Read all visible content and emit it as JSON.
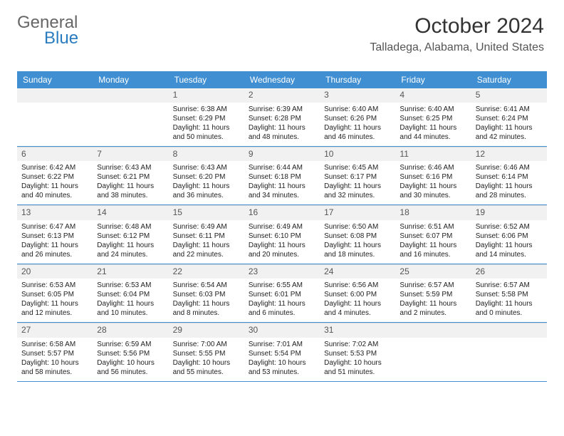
{
  "brand": {
    "part1": "General",
    "part2": "Blue"
  },
  "title": "October 2024",
  "location": "Talladega, Alabama, United States",
  "colors": {
    "header_bg": "#3f8fd2",
    "header_text": "#ffffff",
    "rule": "#3f8fd2",
    "daynum_bg": "#f1f1f1",
    "text": "#222222",
    "title_color": "#333333",
    "brand_gray": "#666666",
    "brand_blue": "#2b7bbf"
  },
  "day_names": [
    "Sunday",
    "Monday",
    "Tuesday",
    "Wednesday",
    "Thursday",
    "Friday",
    "Saturday"
  ],
  "weeks": [
    [
      {
        "n": "",
        "lines": []
      },
      {
        "n": "",
        "lines": []
      },
      {
        "n": "1",
        "lines": [
          "Sunrise: 6:38 AM",
          "Sunset: 6:29 PM",
          "Daylight: 11 hours",
          "and 50 minutes."
        ]
      },
      {
        "n": "2",
        "lines": [
          "Sunrise: 6:39 AM",
          "Sunset: 6:28 PM",
          "Daylight: 11 hours",
          "and 48 minutes."
        ]
      },
      {
        "n": "3",
        "lines": [
          "Sunrise: 6:40 AM",
          "Sunset: 6:26 PM",
          "Daylight: 11 hours",
          "and 46 minutes."
        ]
      },
      {
        "n": "4",
        "lines": [
          "Sunrise: 6:40 AM",
          "Sunset: 6:25 PM",
          "Daylight: 11 hours",
          "and 44 minutes."
        ]
      },
      {
        "n": "5",
        "lines": [
          "Sunrise: 6:41 AM",
          "Sunset: 6:24 PM",
          "Daylight: 11 hours",
          "and 42 minutes."
        ]
      }
    ],
    [
      {
        "n": "6",
        "lines": [
          "Sunrise: 6:42 AM",
          "Sunset: 6:22 PM",
          "Daylight: 11 hours",
          "and 40 minutes."
        ]
      },
      {
        "n": "7",
        "lines": [
          "Sunrise: 6:43 AM",
          "Sunset: 6:21 PM",
          "Daylight: 11 hours",
          "and 38 minutes."
        ]
      },
      {
        "n": "8",
        "lines": [
          "Sunrise: 6:43 AM",
          "Sunset: 6:20 PM",
          "Daylight: 11 hours",
          "and 36 minutes."
        ]
      },
      {
        "n": "9",
        "lines": [
          "Sunrise: 6:44 AM",
          "Sunset: 6:18 PM",
          "Daylight: 11 hours",
          "and 34 minutes."
        ]
      },
      {
        "n": "10",
        "lines": [
          "Sunrise: 6:45 AM",
          "Sunset: 6:17 PM",
          "Daylight: 11 hours",
          "and 32 minutes."
        ]
      },
      {
        "n": "11",
        "lines": [
          "Sunrise: 6:46 AM",
          "Sunset: 6:16 PM",
          "Daylight: 11 hours",
          "and 30 minutes."
        ]
      },
      {
        "n": "12",
        "lines": [
          "Sunrise: 6:46 AM",
          "Sunset: 6:14 PM",
          "Daylight: 11 hours",
          "and 28 minutes."
        ]
      }
    ],
    [
      {
        "n": "13",
        "lines": [
          "Sunrise: 6:47 AM",
          "Sunset: 6:13 PM",
          "Daylight: 11 hours",
          "and 26 minutes."
        ]
      },
      {
        "n": "14",
        "lines": [
          "Sunrise: 6:48 AM",
          "Sunset: 6:12 PM",
          "Daylight: 11 hours",
          "and 24 minutes."
        ]
      },
      {
        "n": "15",
        "lines": [
          "Sunrise: 6:49 AM",
          "Sunset: 6:11 PM",
          "Daylight: 11 hours",
          "and 22 minutes."
        ]
      },
      {
        "n": "16",
        "lines": [
          "Sunrise: 6:49 AM",
          "Sunset: 6:10 PM",
          "Daylight: 11 hours",
          "and 20 minutes."
        ]
      },
      {
        "n": "17",
        "lines": [
          "Sunrise: 6:50 AM",
          "Sunset: 6:08 PM",
          "Daylight: 11 hours",
          "and 18 minutes."
        ]
      },
      {
        "n": "18",
        "lines": [
          "Sunrise: 6:51 AM",
          "Sunset: 6:07 PM",
          "Daylight: 11 hours",
          "and 16 minutes."
        ]
      },
      {
        "n": "19",
        "lines": [
          "Sunrise: 6:52 AM",
          "Sunset: 6:06 PM",
          "Daylight: 11 hours",
          "and 14 minutes."
        ]
      }
    ],
    [
      {
        "n": "20",
        "lines": [
          "Sunrise: 6:53 AM",
          "Sunset: 6:05 PM",
          "Daylight: 11 hours",
          "and 12 minutes."
        ]
      },
      {
        "n": "21",
        "lines": [
          "Sunrise: 6:53 AM",
          "Sunset: 6:04 PM",
          "Daylight: 11 hours",
          "and 10 minutes."
        ]
      },
      {
        "n": "22",
        "lines": [
          "Sunrise: 6:54 AM",
          "Sunset: 6:03 PM",
          "Daylight: 11 hours",
          "and 8 minutes."
        ]
      },
      {
        "n": "23",
        "lines": [
          "Sunrise: 6:55 AM",
          "Sunset: 6:01 PM",
          "Daylight: 11 hours",
          "and 6 minutes."
        ]
      },
      {
        "n": "24",
        "lines": [
          "Sunrise: 6:56 AM",
          "Sunset: 6:00 PM",
          "Daylight: 11 hours",
          "and 4 minutes."
        ]
      },
      {
        "n": "25",
        "lines": [
          "Sunrise: 6:57 AM",
          "Sunset: 5:59 PM",
          "Daylight: 11 hours",
          "and 2 minutes."
        ]
      },
      {
        "n": "26",
        "lines": [
          "Sunrise: 6:57 AM",
          "Sunset: 5:58 PM",
          "Daylight: 11 hours",
          "and 0 minutes."
        ]
      }
    ],
    [
      {
        "n": "27",
        "lines": [
          "Sunrise: 6:58 AM",
          "Sunset: 5:57 PM",
          "Daylight: 10 hours",
          "and 58 minutes."
        ]
      },
      {
        "n": "28",
        "lines": [
          "Sunrise: 6:59 AM",
          "Sunset: 5:56 PM",
          "Daylight: 10 hours",
          "and 56 minutes."
        ]
      },
      {
        "n": "29",
        "lines": [
          "Sunrise: 7:00 AM",
          "Sunset: 5:55 PM",
          "Daylight: 10 hours",
          "and 55 minutes."
        ]
      },
      {
        "n": "30",
        "lines": [
          "Sunrise: 7:01 AM",
          "Sunset: 5:54 PM",
          "Daylight: 10 hours",
          "and 53 minutes."
        ]
      },
      {
        "n": "31",
        "lines": [
          "Sunrise: 7:02 AM",
          "Sunset: 5:53 PM",
          "Daylight: 10 hours",
          "and 51 minutes."
        ]
      },
      {
        "n": "",
        "lines": []
      },
      {
        "n": "",
        "lines": []
      }
    ]
  ]
}
